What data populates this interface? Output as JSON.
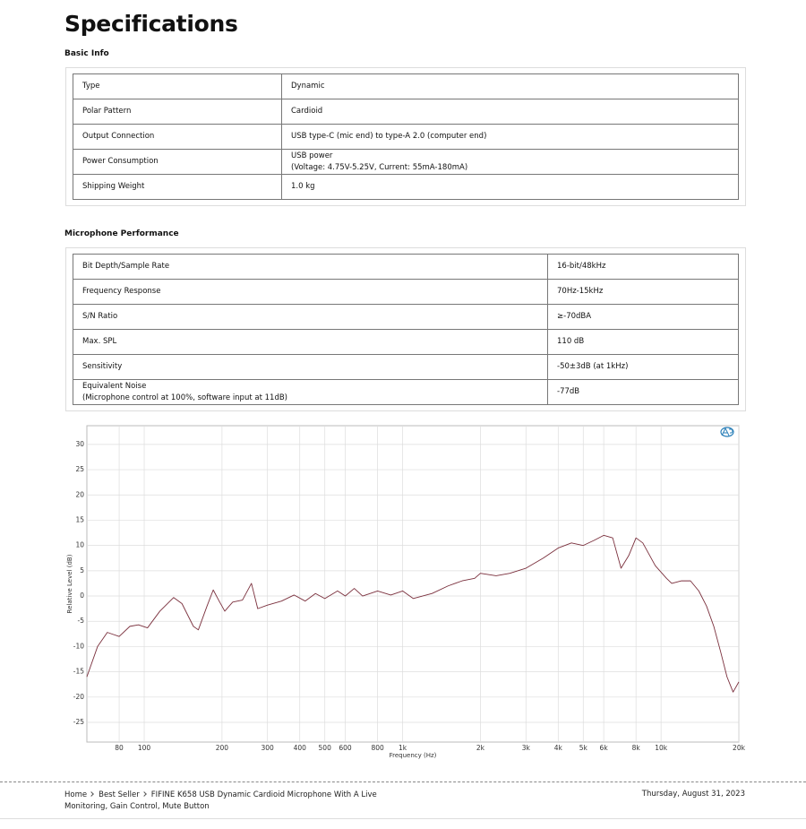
{
  "header": {
    "title": "Specifications"
  },
  "sections": [
    {
      "heading": "Basic Info",
      "rows": [
        [
          [
            "Type"
          ],
          [
            "Dynamic"
          ]
        ],
        [
          [
            "Polar Pattern"
          ],
          [
            "Cardioid"
          ]
        ],
        [
          [
            "Output Connection"
          ],
          [
            "USB type-C (mic end) to type-A 2.0 (computer end)"
          ]
        ],
        [
          [
            "Power Consumption"
          ],
          [
            "USB power",
            "(Voltage: 4.75V-5.25V, Current: 55mA-180mA)"
          ]
        ],
        [
          [
            "Shipping Weight"
          ],
          [
            "1.0 kg"
          ]
        ]
      ]
    },
    {
      "heading": "Microphone Performance",
      "rows": [
        [
          [
            "Bit Depth/Sample Rate"
          ],
          [
            "16-bit/48kHz"
          ]
        ],
        [
          [
            "Frequency Response"
          ],
          [
            "70Hz-15kHz"
          ]
        ],
        [
          [
            "S/N Ratio"
          ],
          [
            "≥-70dBA"
          ]
        ],
        [
          [
            "Max. SPL"
          ],
          [
            "110 dB"
          ]
        ],
        [
          [
            "Sensitivity"
          ],
          [
            "-50±3dB (at 1kHz)"
          ]
        ],
        [
          [
            "Equivalent Noise",
            "(Microphone control at 100%, software input at 11dB)"
          ],
          [
            "-77dB"
          ]
        ]
      ]
    }
  ],
  "chart_data": {
    "type": "line",
    "x_label": "Frequency (Hz)",
    "y_label": "Relative Level (dB)",
    "log_x": true,
    "grid": true,
    "color": "#7a2f3c",
    "x": [
      60,
      66,
      72,
      80,
      88,
      95,
      103,
      115,
      130,
      140,
      155,
      162,
      175,
      185,
      195,
      205,
      220,
      240,
      260,
      275,
      300,
      340,
      380,
      420,
      460,
      500,
      560,
      600,
      650,
      700,
      800,
      900,
      1000,
      1100,
      1300,
      1500,
      1700,
      1900,
      2000,
      2300,
      2600,
      3000,
      3500,
      4000,
      4500,
      5000,
      5500,
      6000,
      6500,
      7000,
      7500,
      8000,
      8500,
      9500,
      10500,
      11000,
      12000,
      13000,
      14000,
      15000,
      16000,
      17000,
      18000,
      19000,
      20000
    ],
    "values": [
      -16,
      -10,
      -7.2,
      -8,
      -6,
      -5.7,
      -6.3,
      -3,
      -0.3,
      -1.5,
      -6,
      -6.7,
      -2,
      1.2,
      -1,
      -3,
      -1.2,
      -0.8,
      2.5,
      -2.5,
      -1.8,
      -1,
      0.2,
      -1,
      0.5,
      -0.5,
      1,
      0,
      1.5,
      0,
      1,
      0.2,
      1,
      -0.5,
      0.5,
      2,
      3,
      3.5,
      4.5,
      4,
      4.5,
      5.5,
      7.5,
      9.5,
      10.5,
      10,
      11,
      12,
      11.5,
      5.5,
      8,
      11.5,
      10.5,
      6,
      3.5,
      2.5,
      3,
      3,
      1,
      -2,
      -6,
      -11,
      -16,
      -19,
      -17
    ],
    "xlim": [
      60,
      20000
    ],
    "ylim": [
      -28.9,
      33.7
    ],
    "xticks": [
      80,
      100,
      200,
      300,
      400,
      500,
      600,
      800,
      {
        "value": 1000,
        "label": "1k"
      },
      {
        "value": 2000,
        "label": "2k"
      },
      {
        "value": 3000,
        "label": "3k"
      },
      {
        "value": 4000,
        "label": "4k"
      },
      {
        "value": 5000,
        "label": "5k"
      },
      {
        "value": 6000,
        "label": "6k"
      },
      {
        "value": 8000,
        "label": "8k"
      },
      {
        "value": 10000,
        "label": "10k"
      },
      {
        "value": 20000,
        "label": "20k"
      }
    ],
    "yticks": [
      -25,
      -20,
      -15,
      -10,
      -5,
      0,
      5,
      10,
      15,
      20,
      25,
      30
    ]
  },
  "breadcrumb": {
    "items": [
      "Home",
      "Best Seller",
      "FIFINE K658 USB Dynamic Cardioid Microphone With A Live Monitoring, Gain Control, Mute Button"
    ],
    "date": "Thursday, August 31, 2023"
  }
}
